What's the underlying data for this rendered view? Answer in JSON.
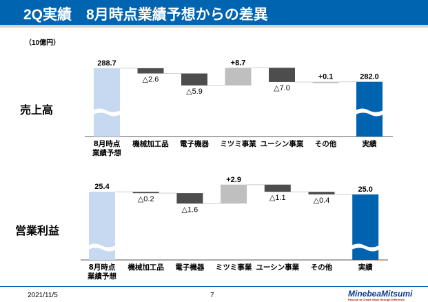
{
  "header": {
    "title": "2Q実績　8月時点業績予想からの差異"
  },
  "unit": "（10億円）",
  "footer": {
    "date": "2021/11/5",
    "page": "7",
    "logo": "MinebeaMitsumi",
    "logo_tagline": "Passion to Create Value through Difference"
  },
  "colors": {
    "forecast": "#c6d9f1",
    "actual": "#0063b0",
    "decrease": "#4d4d4d",
    "increase": "#bfbfbf",
    "header": "#0064b0"
  },
  "chart_data": [
    {
      "type": "waterfall",
      "section_label": "売上高",
      "categories": [
        "8月時点\n業績予想",
        "機械加工品",
        "電子機器",
        "ミツミ事業",
        "ユーシン事業",
        "その他",
        "実績"
      ],
      "values": [
        288.7,
        -2.6,
        -5.9,
        8.7,
        -7.0,
        0.1,
        282.0
      ],
      "labels": [
        "288.7",
        "△2.6",
        "△5.9",
        "+8.7",
        "△7.0",
        "+0.1",
        "282.0"
      ],
      "kinds": [
        "total",
        "delta",
        "delta",
        "delta",
        "delta",
        "delta",
        "total"
      ],
      "axis_break": true
    },
    {
      "type": "waterfall",
      "section_label": "営業利益",
      "categories": [
        "8月時点\n業績予想",
        "機械加工品",
        "電子機器",
        "ミツミ事業",
        "ユーシン事業",
        "その他",
        "実績"
      ],
      "values": [
        25.4,
        -0.2,
        -1.6,
        2.9,
        -1.1,
        -0.4,
        25.0
      ],
      "labels": [
        "25.4",
        "△0.2",
        "△1.6",
        "+2.9",
        "△1.1",
        "△0.4",
        "25.0"
      ],
      "kinds": [
        "total",
        "delta",
        "delta",
        "delta",
        "delta",
        "delta",
        "total"
      ],
      "axis_break": true
    }
  ]
}
